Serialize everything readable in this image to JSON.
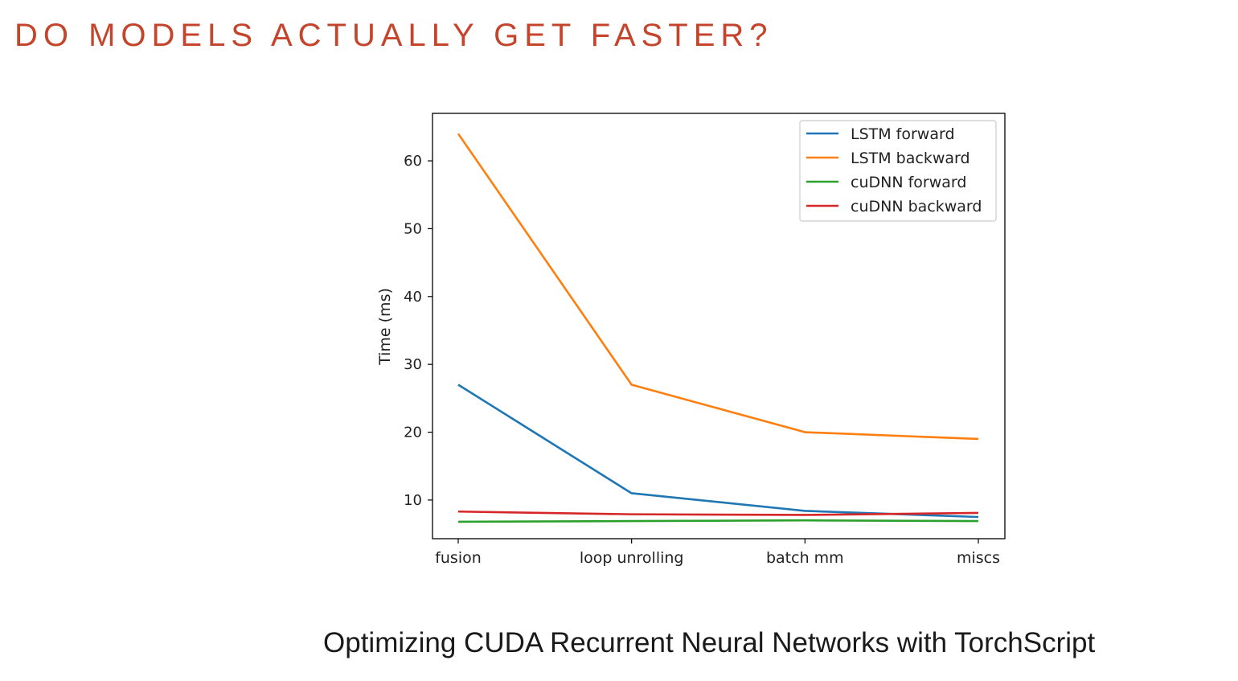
{
  "slide": {
    "title": "DO MODELS ACTUALLY GET FASTER?",
    "caption": "Optimizing CUDA Recurrent Neural Networks with TorchScript"
  },
  "chart_data": {
    "type": "line",
    "title": "",
    "xlabel": "",
    "ylabel": "Time (ms)",
    "categories": [
      "fusion",
      "loop unrolling",
      "batch mm",
      "miscs"
    ],
    "ylim": [
      4.3,
      67.0
    ],
    "yticks": [
      10,
      20,
      30,
      40,
      50,
      60
    ],
    "grid": false,
    "legend_position": "top-right",
    "series": [
      {
        "name": "LSTM forward",
        "color": "#1f77b4",
        "values": [
          27.0,
          11.0,
          8.4,
          7.5
        ]
      },
      {
        "name": "LSTM backward",
        "color": "#ff7f0e",
        "values": [
          64.0,
          27.0,
          20.0,
          19.0
        ]
      },
      {
        "name": "cuDNN forward",
        "color": "#2ca02c",
        "values": [
          6.8,
          6.9,
          7.0,
          6.9
        ]
      },
      {
        "name": "cuDNN backward",
        "color": "#d62728",
        "values": [
          8.3,
          7.9,
          7.8,
          8.1
        ]
      }
    ]
  }
}
